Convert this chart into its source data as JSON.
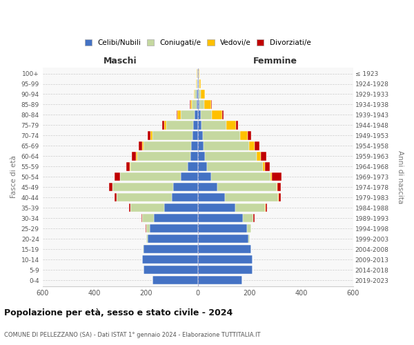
{
  "age_groups": [
    "0-4",
    "5-9",
    "10-14",
    "15-19",
    "20-24",
    "25-29",
    "30-34",
    "35-39",
    "40-44",
    "45-49",
    "50-54",
    "55-59",
    "60-64",
    "65-69",
    "70-74",
    "75-79",
    "80-84",
    "85-89",
    "90-94",
    "95-99",
    "100+"
  ],
  "birth_years": [
    "2019-2023",
    "2014-2018",
    "2009-2013",
    "2004-2008",
    "1999-2003",
    "1994-1998",
    "1989-1993",
    "1984-1988",
    "1979-1983",
    "1974-1978",
    "1969-1973",
    "1964-1968",
    "1959-1963",
    "1954-1958",
    "1949-1953",
    "1944-1948",
    "1939-1943",
    "1934-1938",
    "1929-1933",
    "1924-1928",
    "≤ 1923"
  ],
  "maschi": {
    "celibe": [
      175,
      210,
      215,
      210,
      195,
      185,
      170,
      130,
      100,
      95,
      65,
      40,
      30,
      25,
      20,
      18,
      12,
      6,
      4,
      3,
      2
    ],
    "coniugato": [
      0,
      0,
      0,
      2,
      5,
      15,
      45,
      130,
      215,
      235,
      235,
      220,
      205,
      185,
      155,
      105,
      55,
      18,
      8,
      3,
      1
    ],
    "vedovo": [
      0,
      0,
      0,
      0,
      0,
      0,
      0,
      0,
      0,
      1,
      1,
      2,
      3,
      4,
      8,
      8,
      12,
      6,
      3,
      1,
      1
    ],
    "divorziato": [
      0,
      0,
      0,
      0,
      0,
      2,
      3,
      5,
      8,
      12,
      22,
      15,
      18,
      15,
      12,
      8,
      3,
      1,
      0,
      0,
      0
    ]
  },
  "femmine": {
    "nubile": [
      170,
      210,
      210,
      205,
      195,
      190,
      175,
      145,
      105,
      75,
      50,
      35,
      28,
      22,
      18,
      15,
      10,
      6,
      4,
      3,
      2
    ],
    "coniugata": [
      0,
      0,
      0,
      1,
      5,
      15,
      40,
      115,
      205,
      230,
      230,
      215,
      200,
      175,
      145,
      95,
      45,
      18,
      8,
      4,
      1
    ],
    "vedova": [
      0,
      0,
      0,
      0,
      0,
      0,
      0,
      1,
      2,
      3,
      5,
      8,
      15,
      22,
      30,
      38,
      40,
      28,
      14,
      5,
      3
    ],
    "divorziata": [
      0,
      0,
      0,
      0,
      1,
      2,
      3,
      5,
      8,
      12,
      38,
      20,
      22,
      18,
      12,
      8,
      5,
      2,
      1,
      0,
      0
    ]
  },
  "colors": {
    "celibe": "#4472c4",
    "coniugato": "#c5d8a0",
    "vedovo": "#ffc000",
    "divorziato": "#c00000"
  },
  "title": "Popolazione per età, sesso e stato civile - 2024",
  "subtitle": "COMUNE DI PELLEZZANO (SA) - Dati ISTAT 1° gennaio 2024 - Elaborazione TUTTITALIA.IT",
  "xlabel_maschi": "Maschi",
  "xlabel_femmine": "Femmine",
  "ylabel_left": "Fasce di età",
  "ylabel_right": "Anni di nascita",
  "xlim": 600,
  "legend_labels": [
    "Celibi/Nubili",
    "Coniugati/e",
    "Vedovi/e",
    "Divorziati/e"
  ],
  "bg_color": "#f8f8f8",
  "grid_color": "#cccccc"
}
